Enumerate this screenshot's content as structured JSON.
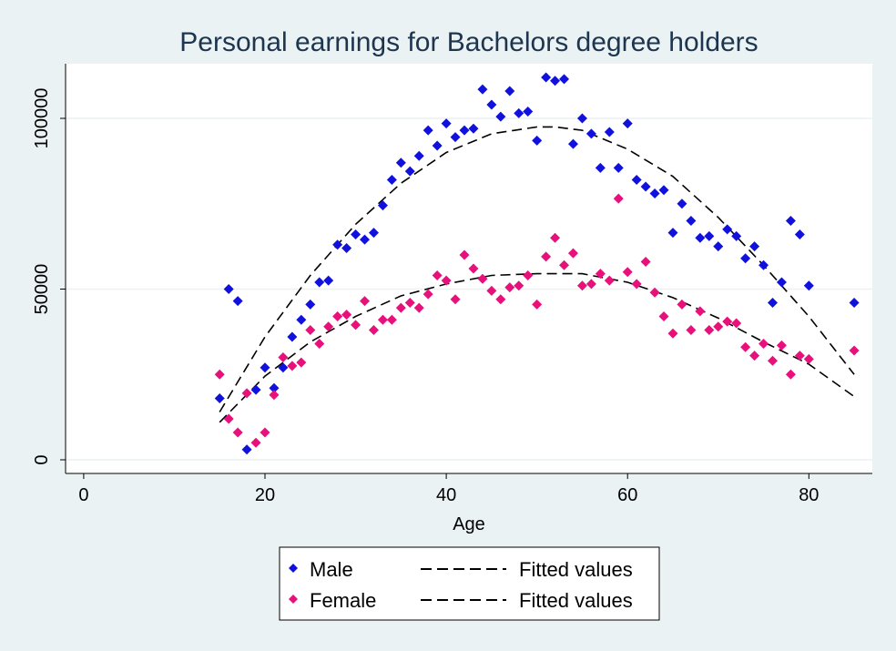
{
  "chart_data": {
    "type": "scatter",
    "title": "Personal earnings for Bachelors degree holders",
    "xlabel": "Age",
    "ylabel": "",
    "xlim": [
      -2,
      87
    ],
    "ylim": [
      -4000,
      116000
    ],
    "xticks": [
      0,
      20,
      40,
      60,
      80
    ],
    "yticks": [
      0,
      50000,
      100000
    ],
    "ytick_labels": [
      "0",
      "50000",
      "100000"
    ],
    "grid": true,
    "legend_position": "bottom",
    "series": [
      {
        "name": "Male",
        "kind": "scatter",
        "marker": "diamond",
        "color": "#1111dd",
        "x": [
          15,
          16,
          17,
          18,
          19,
          20,
          21,
          22,
          23,
          24,
          25,
          26,
          27,
          28,
          29,
          30,
          31,
          32,
          33,
          34,
          35,
          36,
          37,
          38,
          39,
          40,
          41,
          42,
          43,
          44,
          45,
          46,
          47,
          48,
          49,
          50,
          51,
          52,
          53,
          54,
          55,
          56,
          57,
          58,
          59,
          60,
          61,
          62,
          63,
          64,
          65,
          66,
          67,
          68,
          69,
          70,
          71,
          72,
          73,
          74,
          75,
          76,
          77,
          78,
          79,
          80,
          85
        ],
        "y": [
          18000,
          50000,
          46500,
          3000,
          20500,
          27000,
          21000,
          27000,
          36000,
          41000,
          45500,
          52000,
          52500,
          63000,
          62000,
          66000,
          64500,
          66500,
          74500,
          82000,
          87000,
          84500,
          89000,
          96500,
          92000,
          98500,
          94500,
          96500,
          97000,
          108500,
          104000,
          100500,
          108000,
          101500,
          102000,
          93500,
          112000,
          111000,
          111500,
          92500,
          100000,
          95500,
          85500,
          96000,
          85500,
          98500,
          82000,
          80000,
          78000,
          79000,
          66500,
          75000,
          70000,
          65000,
          65500,
          62500,
          67500,
          65500,
          59000,
          62500,
          57000,
          46000,
          52000,
          70000,
          66000,
          51000,
          46000
        ]
      },
      {
        "name": "Female",
        "kind": "scatter",
        "marker": "diamond",
        "color": "#e8107a",
        "x": [
          15,
          16,
          17,
          18,
          19,
          20,
          21,
          22,
          23,
          24,
          25,
          26,
          27,
          28,
          29,
          30,
          31,
          32,
          33,
          34,
          35,
          36,
          37,
          38,
          39,
          40,
          41,
          42,
          43,
          44,
          45,
          46,
          47,
          48,
          49,
          50,
          51,
          52,
          53,
          54,
          55,
          56,
          57,
          58,
          59,
          60,
          61,
          62,
          63,
          64,
          65,
          66,
          67,
          68,
          69,
          70,
          71,
          72,
          73,
          74,
          75,
          76,
          77,
          78,
          79,
          80,
          85
        ],
        "y": [
          25000,
          12000,
          8000,
          19500,
          5000,
          8000,
          19000,
          30000,
          27500,
          28500,
          38000,
          34000,
          39000,
          42000,
          42500,
          39500,
          46500,
          38000,
          41000,
          41000,
          44500,
          46000,
          44500,
          48500,
          54000,
          52500,
          47000,
          60000,
          56000,
          53000,
          49500,
          47000,
          50500,
          51000,
          54000,
          45500,
          59500,
          65000,
          57000,
          60500,
          51000,
          51500,
          54500,
          52500,
          76500,
          55000,
          51500,
          58000,
          49000,
          42000,
          37000,
          45500,
          38000,
          43500,
          38000,
          39000,
          40500,
          40000,
          33000,
          30500,
          34000,
          29000,
          33500,
          25000,
          30500,
          29500,
          32000
        ]
      },
      {
        "name": "Fitted values",
        "kind": "line",
        "style": "dashed",
        "color": "#000000",
        "x": [
          15,
          20,
          25,
          30,
          35,
          40,
          45,
          50,
          52,
          55,
          60,
          65,
          70,
          75,
          80,
          85
        ],
        "y": [
          14000,
          36000,
          54000,
          69000,
          81000,
          90000,
          95500,
          97500,
          97500,
          96500,
          91000,
          83000,
          71000,
          57000,
          42000,
          25000
        ]
      },
      {
        "name": "Fitted values",
        "kind": "line",
        "style": "dashed",
        "color": "#000000",
        "x": [
          15,
          20,
          25,
          30,
          35,
          40,
          45,
          50,
          55,
          60,
          65,
          70,
          75,
          80,
          85
        ],
        "y": [
          11000,
          24500,
          34500,
          42000,
          48000,
          51500,
          54000,
          54500,
          54500,
          52000,
          47500,
          41500,
          34500,
          28000,
          18500
        ]
      }
    ]
  }
}
